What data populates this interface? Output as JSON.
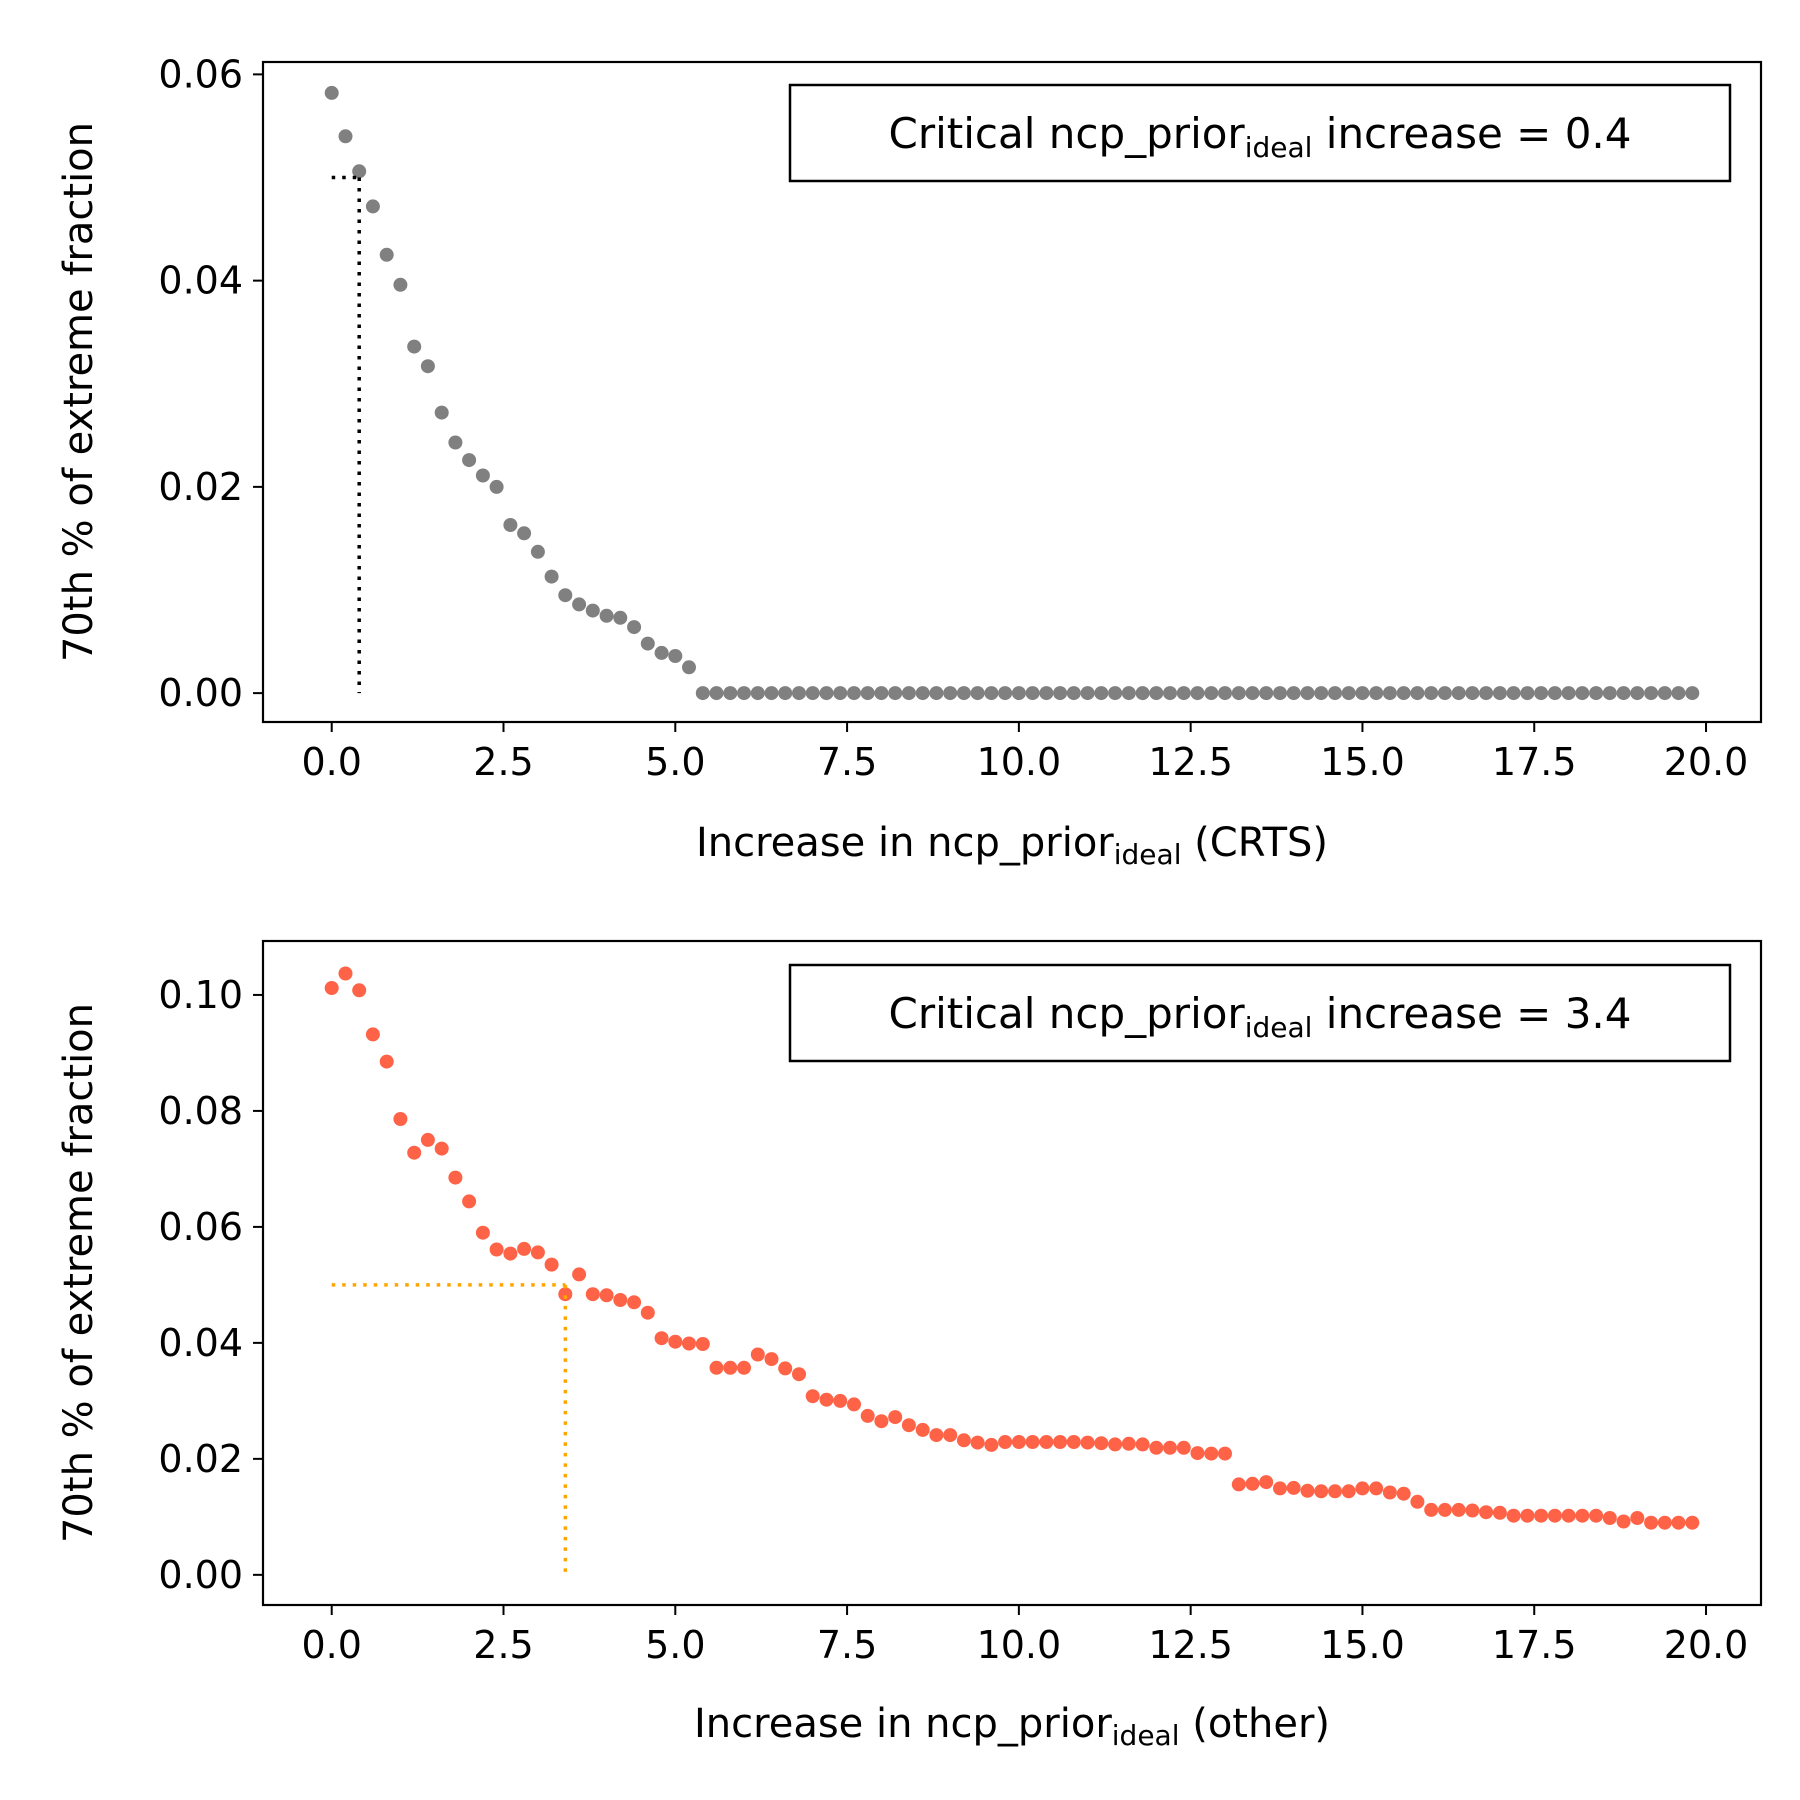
{
  "chart_data": [
    {
      "type": "scatter",
      "xlabel": {
        "prefix": "Increase in ncp_prior",
        "sub": "ideal",
        "suffix": " (CRTS)"
      },
      "ylabel": "70th % of extreme fraction",
      "xlim": [
        -1.0,
        20.8
      ],
      "ylim": [
        -0.0028,
        0.0612
      ],
      "xticks": [
        0.0,
        2.5,
        5.0,
        7.5,
        10.0,
        12.5,
        15.0,
        17.5,
        20.0
      ],
      "xtick_labels": [
        "0.0",
        "2.5",
        "5.0",
        "7.5",
        "10.0",
        "12.5",
        "15.0",
        "17.5",
        "20.0"
      ],
      "yticks": [
        0.0,
        0.02,
        0.04,
        0.06
      ],
      "ytick_labels": [
        "0.00",
        "0.02",
        "0.04",
        "0.06"
      ],
      "legend": {
        "prefix": "Critical ncp_prior",
        "sub": "ideal",
        "suffix": " increase = 0.4",
        "position": "top-right"
      },
      "marker_color": "#808080",
      "guide_color": "#000000",
      "threshold": 0.05,
      "critical": 0.4,
      "x": [
        0.0,
        0.2,
        0.4,
        0.6,
        0.8,
        1.0,
        1.2,
        1.4,
        1.6,
        1.8,
        2.0,
        2.2,
        2.4,
        2.6,
        2.8,
        3.0,
        3.2,
        3.4,
        3.6,
        3.8,
        4.0,
        4.2,
        4.4,
        4.6,
        4.8,
        5.0,
        5.2,
        5.4,
        5.6,
        5.8,
        6.0,
        6.2,
        6.4,
        6.6,
        6.8,
        7.0,
        7.2,
        7.4,
        7.6,
        7.8,
        8.0,
        8.2,
        8.4,
        8.6,
        8.8,
        9.0,
        9.2,
        9.4,
        9.6,
        9.8,
        10.0,
        10.2,
        10.4,
        10.6,
        10.8,
        11.0,
        11.2,
        11.4,
        11.6,
        11.8,
        12.0,
        12.2,
        12.4,
        12.6,
        12.8,
        13.0,
        13.2,
        13.4,
        13.6,
        13.8,
        14.0,
        14.2,
        14.4,
        14.6,
        14.8,
        15.0,
        15.2,
        15.4,
        15.6,
        15.8,
        16.0,
        16.2,
        16.4,
        16.6,
        16.8,
        17.0,
        17.2,
        17.4,
        17.6,
        17.8,
        18.0,
        18.2,
        18.4,
        18.6,
        18.8,
        19.0,
        19.2,
        19.4,
        19.6,
        19.8
      ],
      "y": [
        0.0582,
        0.054,
        0.0506,
        0.0472,
        0.0425,
        0.0396,
        0.0336,
        0.0317,
        0.0272,
        0.0243,
        0.0226,
        0.0211,
        0.02,
        0.0163,
        0.0155,
        0.0137,
        0.0113,
        0.0095,
        0.0086,
        0.008,
        0.0075,
        0.0073,
        0.0064,
        0.0048,
        0.0039,
        0.0036,
        0.0025,
        0.0,
        0.0,
        0.0,
        0.0,
        0.0,
        0.0,
        0.0,
        0.0,
        0.0,
        0.0,
        0.0,
        0.0,
        0.0,
        0.0,
        0.0,
        0.0,
        0.0,
        0.0,
        0.0,
        0.0,
        0.0,
        0.0,
        0.0,
        0.0,
        0.0,
        0.0,
        0.0,
        0.0,
        0.0,
        0.0,
        0.0,
        0.0,
        0.0,
        0.0,
        0.0,
        0.0,
        0.0,
        0.0,
        0.0,
        0.0,
        0.0,
        0.0,
        0.0,
        0.0,
        0.0,
        0.0,
        0.0,
        0.0,
        0.0,
        0.0,
        0.0,
        0.0,
        0.0,
        0.0,
        0.0,
        0.0,
        0.0,
        0.0,
        0.0,
        0.0,
        0.0,
        0.0,
        0.0,
        0.0,
        0.0,
        0.0,
        0.0,
        0.0,
        0.0,
        0.0,
        0.0,
        0.0,
        0.0
      ]
    },
    {
      "type": "scatter",
      "xlabel": {
        "prefix": "Increase in ncp_prior",
        "sub": "ideal",
        "suffix": " (other)"
      },
      "ylabel": "70th % of extreme fraction",
      "xlim": [
        -1.0,
        20.8
      ],
      "ylim": [
        -0.0052,
        0.1093
      ],
      "xticks": [
        0.0,
        2.5,
        5.0,
        7.5,
        10.0,
        12.5,
        15.0,
        17.5,
        20.0
      ],
      "xtick_labels": [
        "0.0",
        "2.5",
        "5.0",
        "7.5",
        "10.0",
        "12.5",
        "15.0",
        "17.5",
        "20.0"
      ],
      "yticks": [
        0.0,
        0.02,
        0.04,
        0.06,
        0.08,
        0.1
      ],
      "ytick_labels": [
        "0.00",
        "0.02",
        "0.04",
        "0.06",
        "0.08",
        "0.10"
      ],
      "legend": {
        "prefix": "Critical ncp_prior",
        "sub": "ideal",
        "suffix": " increase = 3.4",
        "position": "top-right"
      },
      "marker_color": "#ff6347",
      "guide_color": "#ffa500",
      "threshold": 0.05,
      "critical": 3.4,
      "x": [
        0.0,
        0.2,
        0.4,
        0.6,
        0.8,
        1.0,
        1.2,
        1.4,
        1.6,
        1.8,
        2.0,
        2.2,
        2.4,
        2.6,
        2.8,
        3.0,
        3.2,
        3.4,
        3.6,
        3.8,
        4.0,
        4.2,
        4.4,
        4.6,
        4.8,
        5.0,
        5.2,
        5.4,
        5.6,
        5.8,
        6.0,
        6.2,
        6.4,
        6.6,
        6.8,
        7.0,
        7.2,
        7.4,
        7.6,
        7.8,
        8.0,
        8.2,
        8.4,
        8.6,
        8.8,
        9.0,
        9.2,
        9.4,
        9.6,
        9.8,
        10.0,
        10.2,
        10.4,
        10.6,
        10.8,
        11.0,
        11.2,
        11.4,
        11.6,
        11.8,
        12.0,
        12.2,
        12.4,
        12.6,
        12.8,
        13.0,
        13.2,
        13.4,
        13.6,
        13.8,
        14.0,
        14.2,
        14.4,
        14.6,
        14.8,
        15.0,
        15.2,
        15.4,
        15.6,
        15.8,
        16.0,
        16.2,
        16.4,
        16.6,
        16.8,
        17.0,
        17.2,
        17.4,
        17.6,
        17.8,
        18.0,
        18.2,
        18.4,
        18.6,
        18.8,
        19.0,
        19.2,
        19.4,
        19.6,
        19.8
      ],
      "y": [
        0.1012,
        0.1037,
        0.1008,
        0.0932,
        0.0885,
        0.0786,
        0.0728,
        0.075,
        0.0735,
        0.0685,
        0.0644,
        0.059,
        0.0561,
        0.0554,
        0.0562,
        0.0556,
        0.0535,
        0.0484,
        0.0518,
        0.0484,
        0.0482,
        0.0474,
        0.047,
        0.0452,
        0.0408,
        0.0402,
        0.0399,
        0.0398,
        0.0357,
        0.0357,
        0.0357,
        0.038,
        0.0372,
        0.0356,
        0.0346,
        0.0308,
        0.0302,
        0.03,
        0.0294,
        0.0274,
        0.0265,
        0.0272,
        0.0258,
        0.025,
        0.0241,
        0.0241,
        0.0232,
        0.0228,
        0.0224,
        0.0229,
        0.0229,
        0.0229,
        0.0229,
        0.0229,
        0.0229,
        0.0228,
        0.0227,
        0.0225,
        0.0226,
        0.0225,
        0.0219,
        0.0219,
        0.0219,
        0.021,
        0.0209,
        0.0209,
        0.0156,
        0.0157,
        0.016,
        0.0149,
        0.015,
        0.0145,
        0.0144,
        0.0144,
        0.0144,
        0.0149,
        0.0149,
        0.0142,
        0.014,
        0.0126,
        0.0112,
        0.0112,
        0.0112,
        0.0111,
        0.0108,
        0.0107,
        0.0102,
        0.0102,
        0.0102,
        0.0102,
        0.0102,
        0.0102,
        0.0102,
        0.0098,
        0.0092,
        0.0098,
        0.009,
        0.009,
        0.009,
        0.009
      ]
    }
  ]
}
